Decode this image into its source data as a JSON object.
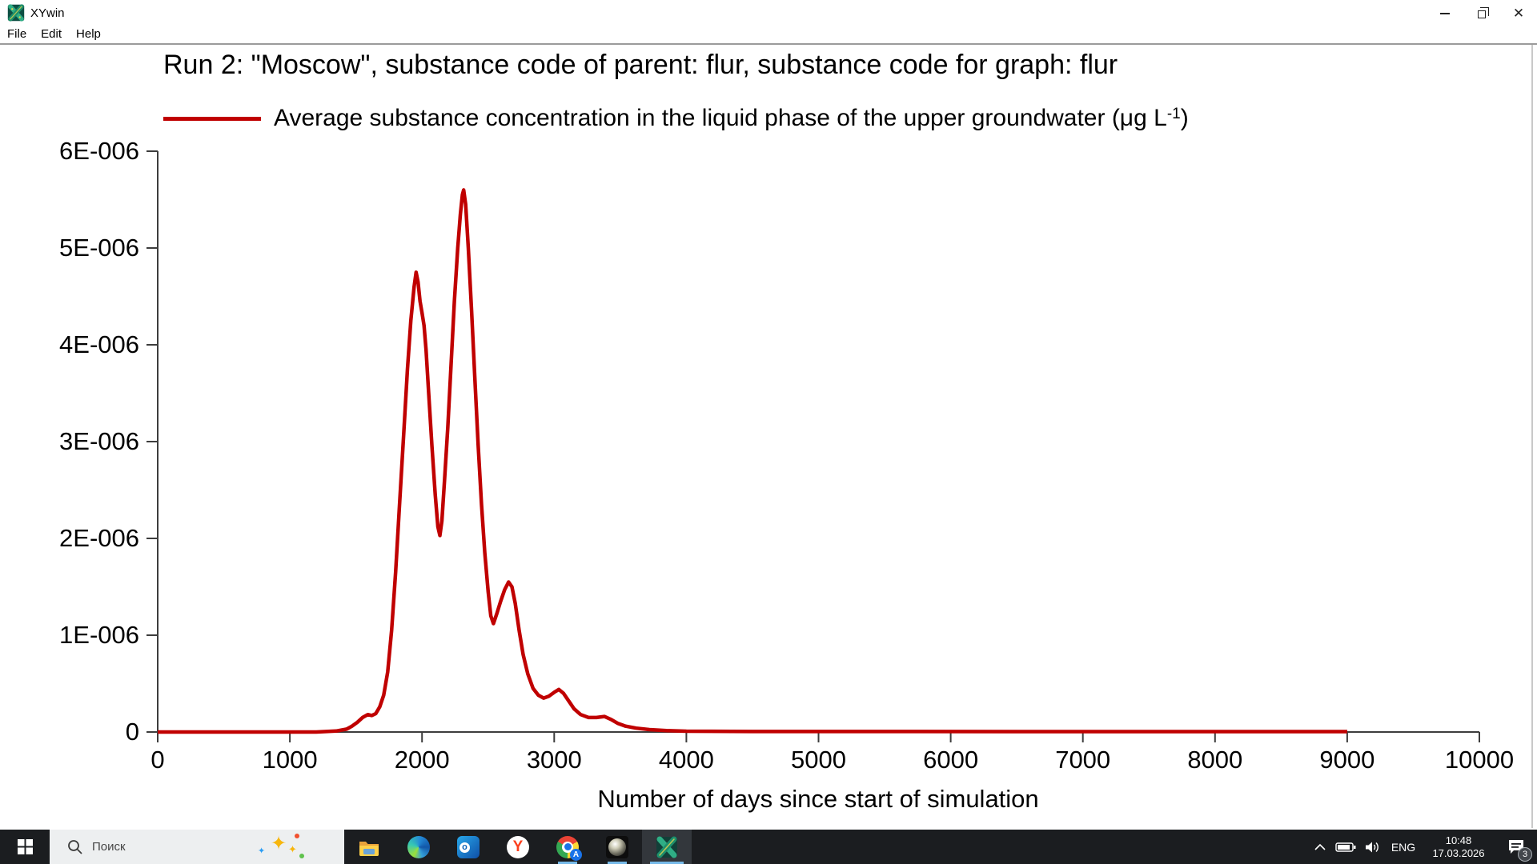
{
  "window": {
    "title": "XYwin",
    "menu": [
      "File",
      "Edit",
      "Help"
    ],
    "icons": {
      "titlebar": "xywin-logo-icon",
      "controls": [
        "minimize-icon",
        "restore-icon",
        "close-icon"
      ]
    },
    "close_glyph": "✕"
  },
  "chart_data": {
    "type": "line",
    "title": "Run 2: \"Moscow\", substance code of parent: flur, substance code for graph: flur",
    "xlabel": "Number of days since start of simulation",
    "ylabel": "",
    "grid": false,
    "legend_position": "top-left",
    "legend": {
      "pre": "Average substance concentration in the liquid phase of the upper groundwater (μg L",
      "sup": "-1",
      "post": ")"
    },
    "xlim": [
      0,
      10000
    ],
    "ylim": [
      0,
      6e-06
    ],
    "y_unit": 1e-06,
    "xticks": {
      "values": [
        0,
        1000,
        2000,
        3000,
        4000,
        5000,
        6000,
        7000,
        8000,
        9000,
        10000
      ],
      "labels": [
        "0",
        "1000",
        "2000",
        "3000",
        "4000",
        "5000",
        "6000",
        "7000",
        "8000",
        "9000",
        "10000"
      ]
    },
    "yticks": {
      "values_e6": [
        0,
        1,
        2,
        3,
        4,
        5,
        6
      ],
      "labels": [
        "0",
        "1E-006",
        "2E-006",
        "3E-006",
        "4E-006",
        "5E-006",
        "6E-006"
      ]
    },
    "series": [
      {
        "name": "Average substance concentration in the liquid phase of the upper groundwater (ug L-1)",
        "color": "#c00000",
        "x_end_of_data": 9000,
        "points_day_vs_e6": [
          [
            0,
            0
          ],
          [
            1200,
            0
          ],
          [
            1350,
            0.01
          ],
          [
            1430,
            0.03
          ],
          [
            1470,
            0.06
          ],
          [
            1510,
            0.1
          ],
          [
            1550,
            0.15
          ],
          [
            1590,
            0.18
          ],
          [
            1620,
            0.17
          ],
          [
            1650,
            0.19
          ],
          [
            1680,
            0.26
          ],
          [
            1710,
            0.38
          ],
          [
            1740,
            0.62
          ],
          [
            1770,
            1.05
          ],
          [
            1800,
            1.65
          ],
          [
            1830,
            2.35
          ],
          [
            1860,
            3.05
          ],
          [
            1890,
            3.75
          ],
          [
            1915,
            4.25
          ],
          [
            1940,
            4.6
          ],
          [
            1955,
            4.75
          ],
          [
            1970,
            4.65
          ],
          [
            1985,
            4.45
          ],
          [
            2000,
            4.33
          ],
          [
            2015,
            4.2
          ],
          [
            2030,
            3.95
          ],
          [
            2050,
            3.5
          ],
          [
            2075,
            2.95
          ],
          [
            2100,
            2.45
          ],
          [
            2120,
            2.12
          ],
          [
            2135,
            2.03
          ],
          [
            2150,
            2.18
          ],
          [
            2170,
            2.6
          ],
          [
            2195,
            3.15
          ],
          [
            2220,
            3.8
          ],
          [
            2245,
            4.45
          ],
          [
            2270,
            5.0
          ],
          [
            2290,
            5.35
          ],
          [
            2305,
            5.55
          ],
          [
            2315,
            5.6
          ],
          [
            2330,
            5.45
          ],
          [
            2350,
            5.0
          ],
          [
            2375,
            4.35
          ],
          [
            2400,
            3.65
          ],
          [
            2425,
            2.95
          ],
          [
            2450,
            2.35
          ],
          [
            2475,
            1.85
          ],
          [
            2500,
            1.45
          ],
          [
            2520,
            1.2
          ],
          [
            2540,
            1.12
          ],
          [
            2565,
            1.22
          ],
          [
            2595,
            1.35
          ],
          [
            2625,
            1.47
          ],
          [
            2655,
            1.55
          ],
          [
            2680,
            1.5
          ],
          [
            2705,
            1.33
          ],
          [
            2735,
            1.05
          ],
          [
            2765,
            0.8
          ],
          [
            2800,
            0.6
          ],
          [
            2840,
            0.45
          ],
          [
            2880,
            0.38
          ],
          [
            2920,
            0.35
          ],
          [
            2960,
            0.37
          ],
          [
            3000,
            0.41
          ],
          [
            3035,
            0.44
          ],
          [
            3070,
            0.4
          ],
          [
            3110,
            0.32
          ],
          [
            3150,
            0.24
          ],
          [
            3200,
            0.18
          ],
          [
            3260,
            0.15
          ],
          [
            3320,
            0.15
          ],
          [
            3380,
            0.16
          ],
          [
            3430,
            0.13
          ],
          [
            3480,
            0.09
          ],
          [
            3540,
            0.06
          ],
          [
            3620,
            0.04
          ],
          [
            3720,
            0.025
          ],
          [
            3850,
            0.015
          ],
          [
            4000,
            0.008
          ],
          [
            4500,
            0.005
          ],
          [
            9000,
            0.004
          ]
        ]
      }
    ]
  },
  "taskbar": {
    "search": {
      "placeholder": "Поиск"
    },
    "apps": [
      {
        "id": "file-explorer",
        "active": false
      },
      {
        "id": "edge",
        "active": false
      },
      {
        "id": "outlook",
        "active": false
      },
      {
        "id": "yandex-browser",
        "active": false
      },
      {
        "id": "chrome",
        "active": true,
        "badge": "A"
      },
      {
        "id": "sphere-app",
        "active": true
      },
      {
        "id": "xywin",
        "active": true,
        "focused": true
      }
    ],
    "tray": {
      "language": "ENG",
      "time": "10:48",
      "date": "17.03.2026",
      "notification_count": "3"
    }
  },
  "colors": {
    "curve": "#c00000",
    "axis": "#3d3d3d",
    "taskbar_bg": "#1b1d20",
    "search_bg": "#edeff0",
    "accent_underline": "#76b9e8"
  },
  "sparkle_glyph": "✦",
  "outlook_letter": "o",
  "yandex_letter": "Y"
}
